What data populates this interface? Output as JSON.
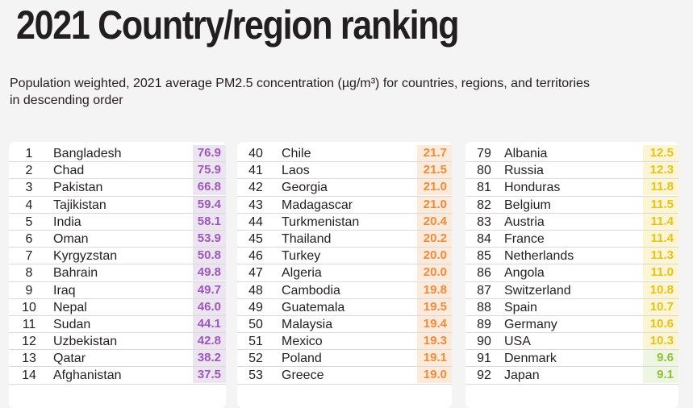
{
  "title": "2021 Country/region ranking",
  "subtitle": "Population weighted, 2021 average PM2.5 concentration (µg/m³) for countries, regions, and territories in descending order",
  "colors": {
    "purple_text": "#9b59b6",
    "purple_bg": "#ece4f1",
    "orange_text": "#f08a3c",
    "orange_bg": "#fdeadb",
    "yellow_text": "#e6c21a",
    "yellow_bg": "#fbf5d3",
    "green_text": "#8cbf3f",
    "green_bg": "#eef6e1"
  },
  "columns": [
    {
      "rows": [
        {
          "rank": "1",
          "name": "Bangladesh",
          "value": "76.9",
          "band": "purple"
        },
        {
          "rank": "2",
          "name": "Chad",
          "value": "75.9",
          "band": "purple"
        },
        {
          "rank": "3",
          "name": "Pakistan",
          "value": "66.8",
          "band": "purple"
        },
        {
          "rank": "4",
          "name": "Tajikistan",
          "value": "59.4",
          "band": "purple"
        },
        {
          "rank": "5",
          "name": "India",
          "value": "58.1",
          "band": "purple"
        },
        {
          "rank": "6",
          "name": "Oman",
          "value": "53.9",
          "band": "purple"
        },
        {
          "rank": "7",
          "name": "Kyrgyzstan",
          "value": "50.8",
          "band": "purple"
        },
        {
          "rank": "8",
          "name": "Bahrain",
          "value": "49.8",
          "band": "purple"
        },
        {
          "rank": "9",
          "name": "Iraq",
          "value": "49.7",
          "band": "purple"
        },
        {
          "rank": "10",
          "name": "Nepal",
          "value": "46.0",
          "band": "purple"
        },
        {
          "rank": "11",
          "name": "Sudan",
          "value": "44.1",
          "band": "purple"
        },
        {
          "rank": "12",
          "name": "Uzbekistan",
          "value": "42.8",
          "band": "purple"
        },
        {
          "rank": "13",
          "name": "Qatar",
          "value": "38.2",
          "band": "purple"
        },
        {
          "rank": "14",
          "name": "Afghanistan",
          "value": "37.5",
          "band": "purple"
        }
      ]
    },
    {
      "rows": [
        {
          "rank": "40",
          "name": "Chile",
          "value": "21.7",
          "band": "orange"
        },
        {
          "rank": "41",
          "name": "Laos",
          "value": "21.5",
          "band": "orange"
        },
        {
          "rank": "42",
          "name": "Georgia",
          "value": "21.0",
          "band": "orange"
        },
        {
          "rank": "43",
          "name": "Madagascar",
          "value": "21.0",
          "band": "orange"
        },
        {
          "rank": "44",
          "name": "Turkmenistan",
          "value": "20.4",
          "band": "orange"
        },
        {
          "rank": "45",
          "name": "Thailand",
          "value": "20.2",
          "band": "orange"
        },
        {
          "rank": "46",
          "name": "Turkey",
          "value": "20.0",
          "band": "orange"
        },
        {
          "rank": "47",
          "name": "Algeria",
          "value": "20.0",
          "band": "orange"
        },
        {
          "rank": "48",
          "name": "Cambodia",
          "value": "19.8",
          "band": "orange"
        },
        {
          "rank": "49",
          "name": "Guatemala",
          "value": "19.5",
          "band": "orange"
        },
        {
          "rank": "50",
          "name": "Malaysia",
          "value": "19.4",
          "band": "orange"
        },
        {
          "rank": "51",
          "name": "Mexico",
          "value": "19.3",
          "band": "orange"
        },
        {
          "rank": "52",
          "name": "Poland",
          "value": "19.1",
          "band": "orange"
        },
        {
          "rank": "53",
          "name": "Greece",
          "value": "19.0",
          "band": "orange"
        }
      ]
    },
    {
      "rows": [
        {
          "rank": "79",
          "name": "Albania",
          "value": "12.5",
          "band": "yellow"
        },
        {
          "rank": "80",
          "name": "Russia",
          "value": "12.3",
          "band": "yellow"
        },
        {
          "rank": "81",
          "name": "Honduras",
          "value": "11.8",
          "band": "yellow"
        },
        {
          "rank": "82",
          "name": "Belgium",
          "value": "11.5",
          "band": "yellow"
        },
        {
          "rank": "83",
          "name": "Austria",
          "value": "11.4",
          "band": "yellow"
        },
        {
          "rank": "84",
          "name": "France",
          "value": "11.4",
          "band": "yellow"
        },
        {
          "rank": "85",
          "name": "Netherlands",
          "value": "11.3",
          "band": "yellow"
        },
        {
          "rank": "86",
          "name": "Angola",
          "value": "11.0",
          "band": "yellow"
        },
        {
          "rank": "87",
          "name": "Switzerland",
          "value": "10.8",
          "band": "yellow"
        },
        {
          "rank": "88",
          "name": "Spain",
          "value": "10.7",
          "band": "yellow"
        },
        {
          "rank": "89",
          "name": "Germany",
          "value": "10.6",
          "band": "yellow"
        },
        {
          "rank": "90",
          "name": "USA",
          "value": "10.3",
          "band": "yellow"
        },
        {
          "rank": "91",
          "name": "Denmark",
          "value": "9.6",
          "band": "green"
        },
        {
          "rank": "92",
          "name": "Japan",
          "value": "9.1",
          "band": "green"
        }
      ]
    }
  ]
}
